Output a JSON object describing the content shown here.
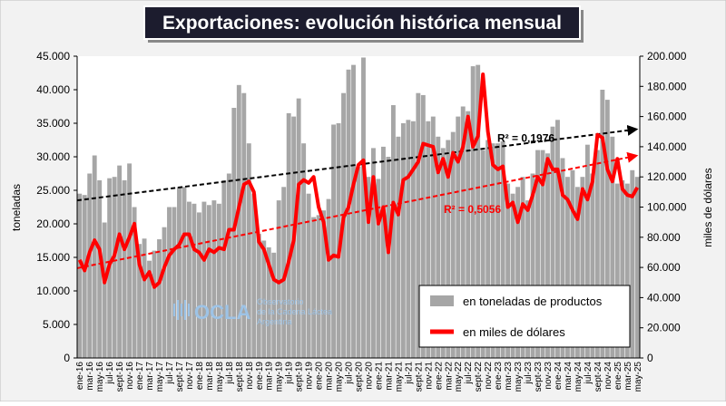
{
  "chart_data": {
    "type": "bar",
    "title": "Exportaciones: evolución histórica mensual",
    "y_label": "toneladas",
    "y2_label": "miles de dólares",
    "categories": [
      "ene-16",
      null,
      "mar-16",
      null,
      "may-16",
      null,
      "jul-16",
      null,
      "sept-16",
      null,
      "nov-16",
      null,
      "ene-17",
      null,
      "mar-17",
      null,
      "may-17",
      null,
      "jul-17",
      null,
      "sept-17",
      null,
      "nov-17",
      null,
      "ene-18",
      null,
      "mar-18",
      null,
      "may-18",
      null,
      "jul-18",
      null,
      "sept-18",
      null,
      "nov-18",
      null,
      "ene-19",
      null,
      "mar-19",
      null,
      "may-19",
      null,
      "jul-19",
      null,
      "sept-19",
      null,
      "nov-19",
      null,
      "ene-20",
      null,
      "mar-20",
      null,
      "may-20",
      null,
      "jul-20",
      null,
      "sept-20",
      null,
      "nov-20",
      null,
      "ene-21",
      null,
      "mar-21",
      null,
      "may-21",
      null,
      "jul-21",
      null,
      "sept-21",
      null,
      "nov-21",
      null,
      "ene-22",
      null,
      "mar-22",
      null,
      "may-22",
      null,
      "jul-22",
      null,
      "sept-22",
      null,
      "nov-22",
      null,
      "ene-23",
      null,
      "mar-23",
      null,
      "may-23",
      null,
      "jul-23",
      null,
      "sept-23",
      null,
      "nov-23",
      null,
      "ene-24",
      null,
      "mar-24",
      null,
      "may-24",
      null,
      "jul-24",
      null,
      "sept-24",
      null,
      "nov-24",
      null,
      "ene-25",
      null,
      "mar-25",
      null,
      "may-25"
    ],
    "series": [
      {
        "name": "en toneladas de productos",
        "type": "bar",
        "color": "#a6a6a6",
        "values": [
          24500,
          24300,
          27500,
          30200,
          26500,
          20200,
          26800,
          27000,
          28700,
          26500,
          29000,
          22500,
          17000,
          17800,
          14500,
          16000,
          17700,
          19500,
          22500,
          22500,
          25500,
          25500,
          23300,
          23000,
          21700,
          23300,
          22800,
          23500,
          23000,
          26500,
          27500,
          37300,
          40700,
          39500,
          32000,
          24500,
          18500,
          17500,
          16500,
          15700,
          23500,
          25500,
          36500,
          36000,
          38700,
          32000,
          24500,
          21000,
          21300,
          22000,
          23700,
          34800,
          35000,
          39500,
          43000,
          43700,
          28500,
          44800,
          27000,
          31300,
          26700,
          31500,
          30000,
          37700,
          33000,
          35000,
          35500,
          35300,
          39500,
          39200,
          35300,
          36000,
          33000,
          31300,
          32500,
          33700,
          36000,
          37500,
          36800,
          43500,
          43700,
          31000,
          32500,
          32000,
          32000,
          32300,
          26000,
          24500,
          25500,
          27000,
          23500,
          27500,
          31000,
          31000,
          30500,
          34500,
          35500,
          29800,
          27000,
          28000,
          25500,
          27000,
          31800,
          27500,
          31000,
          40000,
          38500,
          33000,
          26000,
          26500,
          26000,
          28000,
          27000
        ]
      },
      {
        "name": "en miles de dólares",
        "type": "line",
        "axis": "y2",
        "color": "#ff0000",
        "values": [
          65000,
          58000,
          70000,
          78000,
          72000,
          50000,
          62000,
          68000,
          82000,
          72000,
          80000,
          89000,
          62000,
          52000,
          57000,
          47000,
          50000,
          60000,
          68000,
          72000,
          75000,
          82000,
          82000,
          72000,
          70000,
          65000,
          72000,
          70000,
          73000,
          72000,
          85000,
          85000,
          100000,
          115000,
          117000,
          110000,
          77000,
          72000,
          62000,
          52000,
          50000,
          52000,
          64000,
          78000,
          115000,
          118000,
          116000,
          120000,
          100000,
          90000,
          65000,
          68000,
          67000,
          93000,
          100000,
          115000,
          128000,
          131000,
          90000,
          120000,
          89000,
          100000,
          70000,
          103000,
          95000,
          118000,
          120000,
          125000,
          130000,
          142000,
          141000,
          140000,
          123000,
          132000,
          120000,
          136000,
          130000,
          140000,
          160000,
          140000,
          147000,
          188000,
          150000,
          128000,
          125000,
          127000,
          100000,
          103000,
          90000,
          102000,
          98000,
          108000,
          120000,
          115000,
          132000,
          125000,
          125000,
          108000,
          105000,
          98000,
          92000,
          112000,
          105000,
          117000,
          148000,
          146000,
          125000,
          117000,
          132000,
          112000,
          108000,
          107000,
          113000
        ]
      }
    ],
    "trendlines": [
      {
        "label": "R² = 0,1976",
        "color": "#000000",
        "values": [
          23500,
          34100
        ]
      },
      {
        "label": "R² = 0,5056",
        "color": "#ff0000",
        "axis": "y2",
        "values": [
          59500,
          134000
        ]
      }
    ],
    "ylim": [
      0,
      45000
    ],
    "yticks": [
      0,
      {
        "value": 5000,
        "label": "5.000"
      },
      {
        "value": 10000,
        "label": "10.000"
      },
      {
        "value": 15000,
        "label": "15.000"
      },
      {
        "value": 20000,
        "label": "20.000"
      },
      {
        "value": 25000,
        "label": "25.000"
      },
      {
        "value": 30000,
        "label": "30.000"
      },
      {
        "value": 35000,
        "label": "35.000"
      },
      {
        "value": 40000,
        "label": "40.000"
      },
      {
        "value": 45000,
        "label": "45.000"
      }
    ],
    "y2lim": [
      0,
      200000
    ],
    "y2ticks": [
      0,
      {
        "value": 20000,
        "label": "20.000"
      },
      {
        "value": 40000,
        "label": "40.000"
      },
      {
        "value": 60000,
        "label": "60.000"
      },
      {
        "value": 80000,
        "label": "80.000"
      },
      {
        "value": 100000,
        "label": "100.000"
      },
      {
        "value": 120000,
        "label": "120.000"
      },
      {
        "value": 140000,
        "label": "140.000"
      },
      {
        "value": 160000,
        "label": "160.000"
      },
      {
        "value": 180000,
        "label": "180.000"
      },
      {
        "value": 200000,
        "label": "200.000"
      }
    ],
    "logo": {
      "name": "OCLA",
      "lines": [
        "Observatorio",
        "de la Cadena Láctea",
        "Argentina"
      ]
    }
  }
}
